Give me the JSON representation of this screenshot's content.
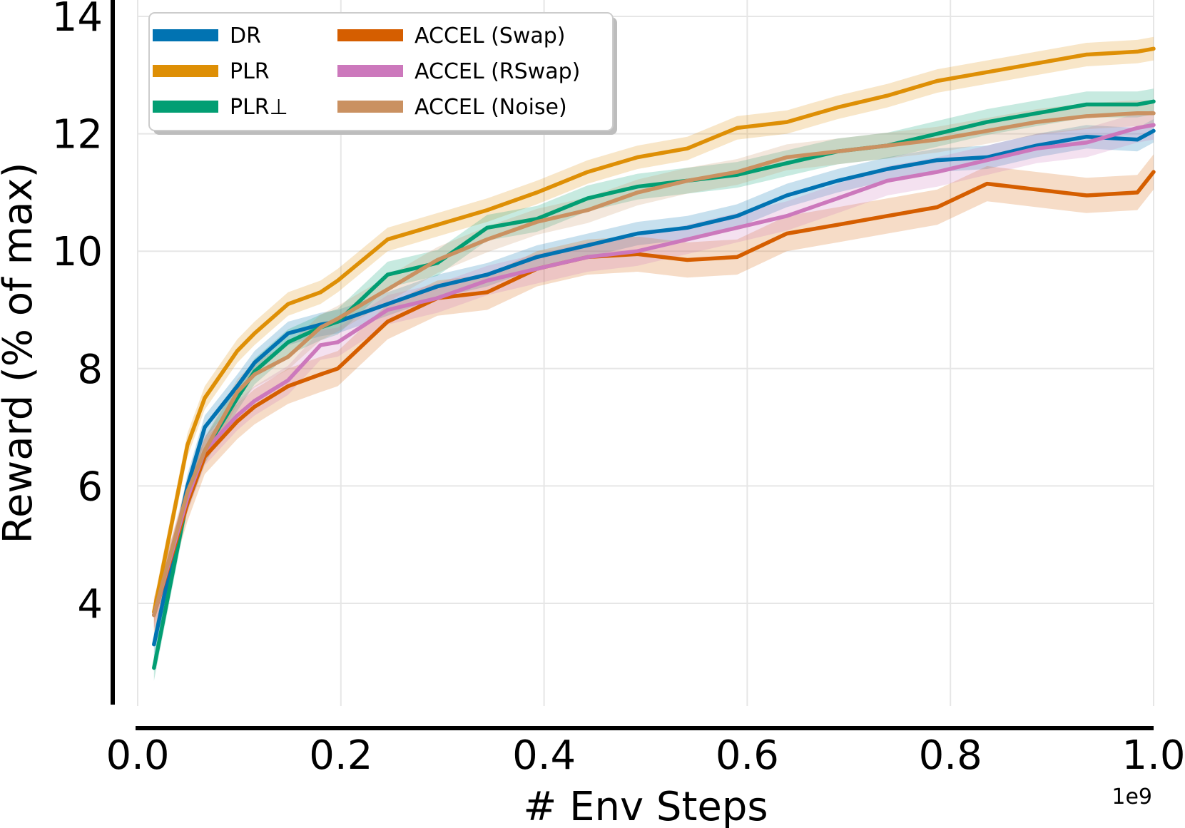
{
  "chart_data": {
    "type": "line",
    "title": "",
    "xlabel": "# Env Steps",
    "ylabel": "Reward (% of max)",
    "x_offset_label": "1e9",
    "xlim": [
      0.0,
      1.0
    ],
    "ylim": [
      2.7,
      14.2
    ],
    "grid": true,
    "legend_position": "top-left",
    "xticks": [
      0.0,
      0.2,
      0.4,
      0.6,
      0.8,
      1.0
    ],
    "xtick_labels": [
      "0.0",
      "0.2",
      "0.4",
      "0.6",
      "0.8",
      "1.0"
    ],
    "yticks": [
      4,
      6,
      8,
      10,
      12,
      14
    ],
    "ytick_labels": [
      "4",
      "6",
      "8",
      "10",
      "12",
      "14"
    ],
    "x": [
      0.016,
      0.049,
      0.066,
      0.098,
      0.115,
      0.148,
      0.18,
      0.197,
      0.246,
      0.295,
      0.344,
      0.393,
      0.443,
      0.492,
      0.541,
      0.59,
      0.639,
      0.689,
      0.738,
      0.787,
      0.836,
      0.885,
      0.934,
      0.984,
      1.0
    ],
    "series": [
      {
        "name": "DR",
        "color": "#0173b2",
        "values": [
          3.3,
          6.0,
          7.0,
          7.7,
          8.1,
          8.6,
          8.75,
          8.8,
          9.1,
          9.4,
          9.6,
          9.9,
          10.1,
          10.3,
          10.4,
          10.6,
          10.95,
          11.2,
          11.4,
          11.55,
          11.6,
          11.8,
          11.95,
          11.9,
          12.05
        ]
      },
      {
        "name": "PLR",
        "color": "#de8f05",
        "values": [
          3.85,
          6.7,
          7.5,
          8.3,
          8.6,
          9.1,
          9.3,
          9.5,
          10.2,
          10.45,
          10.7,
          11.0,
          11.35,
          11.6,
          11.75,
          12.1,
          12.2,
          12.45,
          12.65,
          12.9,
          13.05,
          13.2,
          13.35,
          13.4,
          13.45
        ]
      },
      {
        "name": "PLR⊥",
        "color": "#029e73",
        "values": [
          2.9,
          5.8,
          6.6,
          7.5,
          7.95,
          8.45,
          8.7,
          8.8,
          9.6,
          9.8,
          10.4,
          10.55,
          10.9,
          11.1,
          11.2,
          11.3,
          11.5,
          11.7,
          11.8,
          12.0,
          12.2,
          12.35,
          12.5,
          12.5,
          12.55
        ]
      },
      {
        "name": "ACCEL (Swap)",
        "color": "#d55e00",
        "values": [
          3.8,
          5.7,
          6.5,
          7.1,
          7.35,
          7.7,
          7.9,
          8.0,
          8.8,
          9.2,
          9.3,
          9.7,
          9.9,
          9.95,
          9.85,
          9.9,
          10.3,
          10.45,
          10.6,
          10.75,
          11.15,
          11.05,
          10.95,
          11.0,
          11.35
        ]
      },
      {
        "name": "ACCEL (RSwap)",
        "color": "#cc78bc",
        "values": [
          3.8,
          5.8,
          6.6,
          7.2,
          7.45,
          7.8,
          8.4,
          8.45,
          9.0,
          9.2,
          9.5,
          9.7,
          9.9,
          10.0,
          10.2,
          10.4,
          10.6,
          10.9,
          11.2,
          11.35,
          11.55,
          11.75,
          11.85,
          12.1,
          12.15
        ]
      },
      {
        "name": "ACCEL (Noise)",
        "color": "#ca9161",
        "values": [
          3.8,
          5.9,
          6.6,
          7.6,
          7.9,
          8.2,
          8.7,
          8.85,
          9.35,
          9.85,
          10.2,
          10.5,
          10.7,
          11.0,
          11.2,
          11.35,
          11.6,
          11.7,
          11.8,
          11.9,
          12.05,
          12.2,
          12.3,
          12.35,
          12.35
        ]
      }
    ]
  }
}
